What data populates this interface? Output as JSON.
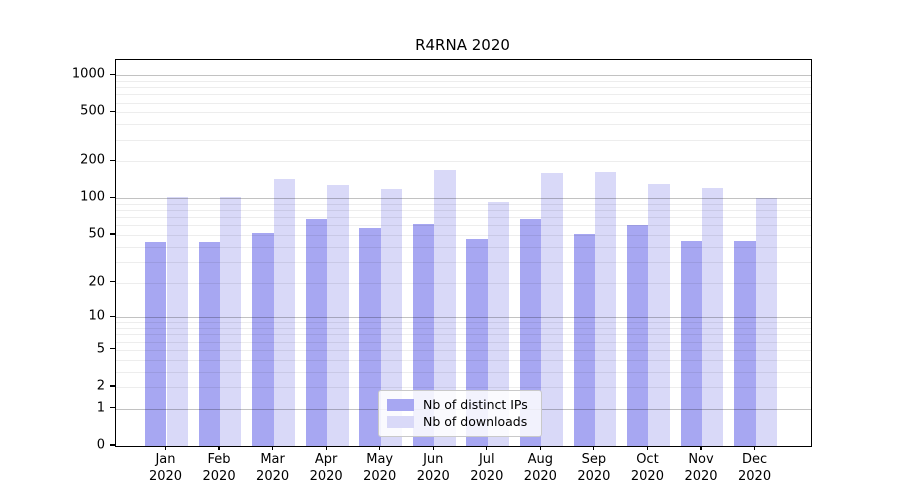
{
  "chart_data": {
    "type": "bar",
    "title": "R4RNA 2020",
    "categories": [
      "Jan 2020",
      "Feb 2020",
      "Mar 2020",
      "Apr 2020",
      "May 2020",
      "Jun 2020",
      "Jul 2020",
      "Aug 2020",
      "Sep 2020",
      "Oct 2020",
      "Nov 2020",
      "Dec 2020"
    ],
    "series": [
      {
        "name": "Nb of distinct IPs",
        "color": "#a7a7f2",
        "values": [
          44,
          44,
          52,
          68,
          57,
          62,
          46,
          68,
          51,
          61,
          45,
          45
        ]
      },
      {
        "name": "Nb of downloads",
        "color": "#d9d9f8",
        "values": [
          103,
          103,
          143,
          128,
          119,
          171,
          94,
          162,
          164,
          130,
          121,
          101
        ]
      }
    ],
    "yscale": "log1p",
    "ylim": [
      0,
      1330
    ],
    "yticks": [
      0,
      1,
      2,
      5,
      10,
      20,
      50,
      100,
      200,
      500,
      1000
    ],
    "xlabel": "",
    "ylabel": "",
    "grid": "horizontal, major lines at powers of 10, faint minor log lines",
    "legend_position": "lower center",
    "colors": {
      "major_grid": "rgba(0,0,0,0.24)",
      "minor_grid": "rgba(0,0,0,0.07)",
      "axis": "#000000",
      "background": "#ffffff"
    }
  }
}
